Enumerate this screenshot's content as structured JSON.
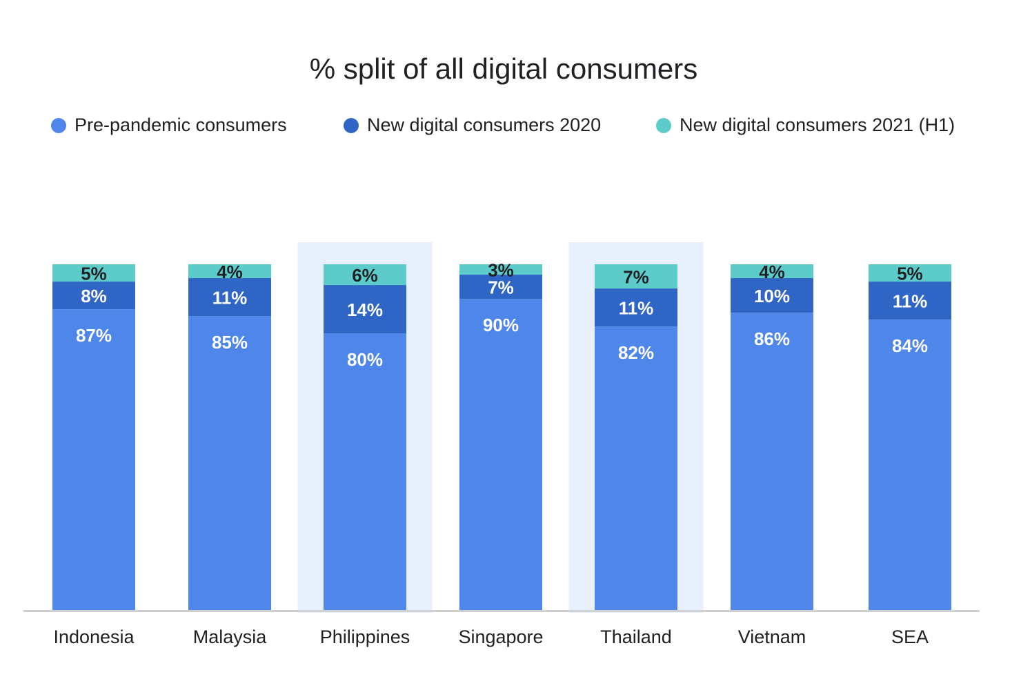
{
  "chart_data": {
    "type": "bar",
    "stacked": true,
    "title": "% split of all digital consumers",
    "legend_position": "top",
    "categories": [
      "Indonesia",
      "Malaysia",
      "Philippines",
      "Singapore",
      "Thailand",
      "Vietnam",
      "SEA"
    ],
    "highlighted_categories": [
      "Philippines",
      "Thailand"
    ],
    "series": [
      {
        "name": "Pre-pandemic consumers",
        "color": "#4f86e9",
        "label_color": "#ffffff",
        "values": [
          87,
          85,
          80,
          90,
          82,
          86,
          84
        ],
        "labels": [
          "87%",
          "85%",
          "80%",
          "90%",
          "82%",
          "86%",
          "84%"
        ]
      },
      {
        "name": "New digital consumers 2020",
        "color": "#2f66c6",
        "label_color": "#ffffff",
        "values": [
          8,
          11,
          14,
          7,
          11,
          10,
          11
        ],
        "labels": [
          "8%",
          "11%",
          "14%",
          "7%",
          "11%",
          "10%",
          "11%"
        ]
      },
      {
        "name": "New digital consumers 2021 (H1)",
        "color": "#5ecbcb",
        "label_color": "#202124",
        "values": [
          5,
          4,
          6,
          3,
          7,
          4,
          5
        ],
        "labels": [
          "5%",
          "4%",
          "6%",
          "3%",
          "7%",
          "4%",
          "5%"
        ]
      }
    ],
    "ylim": [
      0,
      100
    ],
    "grid": false,
    "highlight_color": "#e8effd",
    "axis_color": "#d0d0d0"
  }
}
